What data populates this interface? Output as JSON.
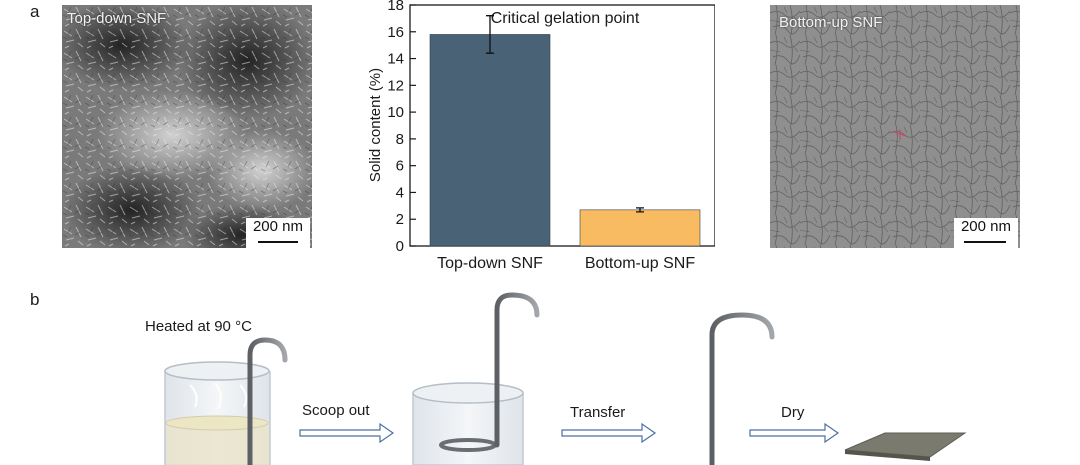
{
  "panels": {
    "a": "a",
    "b": "b"
  },
  "tem_left": {
    "caption": "Top-down SNF",
    "scale_bar": "200 nm"
  },
  "tem_right": {
    "caption": "Bottom-up SNF",
    "scale_bar": "200 nm"
  },
  "chart_data": {
    "type": "bar",
    "title": "Critical gelation point",
    "ylabel": "Solid content (%)",
    "xlabel": "",
    "categories": [
      "Top-down SNF",
      "Bottom-up SNF"
    ],
    "values": [
      15.8,
      2.7
    ],
    "errors": [
      1.4,
      0.15
    ],
    "colors": [
      "#496275",
      "#f9bb62"
    ],
    "ylim": [
      0,
      18
    ],
    "yticks": [
      0,
      2,
      4,
      6,
      8,
      10,
      12,
      14,
      16,
      18
    ]
  },
  "process": {
    "heat_label": "Heated at 90 °C",
    "step1": "Scoop out",
    "step2": "Transfer",
    "step3": "Dry"
  }
}
